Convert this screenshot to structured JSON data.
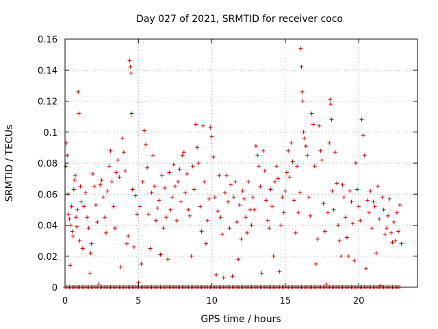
{
  "chart_data": {
    "type": "scatter",
    "title": "Day 027 of 2021, SRMTID for receiver coco",
    "xlabel": "GPS time / hours",
    "ylabel": "SRMTID / TECUs",
    "xlim": [
      0,
      24
    ],
    "ylim": [
      0,
      0.16
    ],
    "xticks": [
      0,
      5,
      10,
      15,
      20
    ],
    "yticks": [
      0,
      0.02,
      0.04,
      0.06,
      0.08,
      0.1,
      0.12,
      0.14,
      0.16
    ],
    "xtick_labels": [
      "0",
      "5",
      "10",
      "15",
      "20"
    ],
    "ytick_labels": [
      "0",
      "0.02",
      "0.04",
      "0.06",
      "0.08",
      "0.1",
      "0.12",
      "0.14",
      "0.16"
    ],
    "grid": true,
    "marker": "+",
    "color": "#cc0000",
    "series": [
      {
        "name": "SRMTID",
        "points": [
          [
            0.05,
            0.078
          ],
          [
            0.1,
            0.093
          ],
          [
            0.15,
            0.085
          ],
          [
            0.2,
            0.06
          ],
          [
            0.25,
            0.047
          ],
          [
            0.3,
            0.044
          ],
          [
            0.35,
            0.014
          ],
          [
            0.4,
            0.04
          ],
          [
            0.45,
            0.052
          ],
          [
            0.5,
            0.036
          ],
          [
            0.55,
            0.033
          ],
          [
            0.6,
            0.063
          ],
          [
            0.65,
            0.069
          ],
          [
            0.7,
            0.072
          ],
          [
            0.75,
            0.045
          ],
          [
            0.8,
            0.039
          ],
          [
            0.85,
            0.05
          ],
          [
            0.9,
            0.126
          ],
          [
            0.95,
            0.112
          ],
          [
            1.0,
            0.03
          ],
          [
            1.05,
            0.065
          ],
          [
            1.1,
            0.055
          ],
          [
            1.2,
            0.025
          ],
          [
            1.3,
            0.052
          ],
          [
            1.4,
            0.061
          ],
          [
            1.5,
            0.045
          ],
          [
            1.6,
            0.038
          ],
          [
            1.7,
            0.009
          ],
          [
            1.75,
            0.022
          ],
          [
            1.8,
            0.028
          ],
          [
            1.9,
            0.073
          ],
          [
            2.0,
            0.065
          ],
          [
            2.1,
            0.053
          ],
          [
            2.2,
            0.042
          ],
          [
            2.3,
            0.002
          ],
          [
            2.4,
            0.066
          ],
          [
            2.5,
            0.069
          ],
          [
            2.6,
            0.058
          ],
          [
            2.7,
            0.045
          ],
          [
            2.8,
            0.035
          ],
          [
            2.9,
            0.062
          ],
          [
            3.0,
            0.078
          ],
          [
            3.1,
            0.088
          ],
          [
            3.2,
            0.068
          ],
          [
            3.3,
            0.052
          ],
          [
            3.4,
            0.038
          ],
          [
            3.5,
            0.074
          ],
          [
            3.6,
            0.082
          ],
          [
            3.7,
            0.071
          ],
          [
            3.8,
            0.013
          ],
          [
            3.9,
            0.096
          ],
          [
            4.0,
            0.087
          ],
          [
            4.1,
            0.075
          ],
          [
            4.2,
            0.028
          ],
          [
            4.3,
            0.033
          ],
          [
            4.4,
            0.146
          ],
          [
            4.45,
            0.142
          ],
          [
            4.5,
            0.138
          ],
          [
            4.55,
            0.112
          ],
          [
            4.6,
            0.063
          ],
          [
            4.7,
            0.026
          ],
          [
            4.8,
            0.059
          ],
          [
            4.9,
            0.047
          ],
          [
            5.0,
            0.003
          ],
          [
            5.1,
            0.052
          ],
          [
            5.2,
            0.015
          ],
          [
            5.3,
            0.068
          ],
          [
            5.4,
            0.101
          ],
          [
            5.5,
            0.092
          ],
          [
            5.6,
            0.077
          ],
          [
            5.7,
            0.047
          ],
          [
            5.8,
            0.025
          ],
          [
            5.9,
            0.061
          ],
          [
            6.0,
            0.085
          ],
          [
            6.1,
            0.065
          ],
          [
            6.2,
            0.043
          ],
          [
            6.3,
            0.051
          ],
          [
            6.4,
            0.056
          ],
          [
            6.5,
            0.021
          ],
          [
            6.6,
            0.072
          ],
          [
            6.7,
            0.038
          ],
          [
            6.8,
            0.064
          ],
          [
            6.9,
            0.045
          ],
          [
            7.0,
            0.018
          ],
          [
            7.1,
            0.074
          ],
          [
            7.2,
            0.05
          ],
          [
            7.3,
            0.058
          ],
          [
            7.4,
            0.079
          ],
          [
            7.5,
            0.065
          ],
          [
            7.6,
            0.043
          ],
          [
            7.7,
            0.068
          ],
          [
            7.8,
            0.076
          ],
          [
            7.9,
            0.055
          ],
          [
            8.0,
            0.085
          ],
          [
            8.1,
            0.087
          ],
          [
            8.2,
            0.061
          ],
          [
            8.3,
            0.073
          ],
          [
            8.4,
            0.05
          ],
          [
            8.5,
            0.046
          ],
          [
            8.6,
            0.02
          ],
          [
            8.7,
            0.078
          ],
          [
            8.8,
            0.063
          ],
          [
            8.9,
            0.105
          ],
          [
            9.0,
            0.09
          ],
          [
            9.1,
            0.08
          ],
          [
            9.2,
            0.052
          ],
          [
            9.3,
            0.036
          ],
          [
            9.4,
            0.104
          ],
          [
            9.5,
            0.068
          ],
          [
            9.6,
            0.028
          ],
          [
            9.7,
            0.043
          ],
          [
            9.8,
            0.057
          ],
          [
            9.9,
            0.103
          ],
          [
            10.0,
            0.097
          ],
          [
            10.1,
            0.084
          ],
          [
            10.2,
            0.058
          ],
          [
            10.3,
            0.008
          ],
          [
            10.4,
            0.049
          ],
          [
            10.5,
            0.072
          ],
          [
            10.6,
            0.045
          ],
          [
            10.7,
            0.034
          ],
          [
            10.8,
            0.006
          ],
          [
            10.9,
            0.061
          ],
          [
            11.0,
            0.072
          ],
          [
            11.1,
            0.055
          ],
          [
            11.2,
            0.038
          ],
          [
            11.3,
            0.066
          ],
          [
            11.4,
            0.007
          ],
          [
            11.5,
            0.058
          ],
          [
            11.6,
            0.068
          ],
          [
            11.7,
            0.042
          ],
          [
            11.8,
            0.018
          ],
          [
            11.9,
            0.053
          ],
          [
            12.0,
            0.031
          ],
          [
            12.1,
            0.062
          ],
          [
            12.2,
            0.057
          ],
          [
            12.3,
            0.045
          ],
          [
            12.4,
            0.035
          ],
          [
            12.5,
            0.068
          ],
          [
            12.6,
            0.05
          ],
          [
            12.7,
            0.04
          ],
          [
            12.8,
            0.058
          ],
          [
            12.9,
            0.05
          ],
          [
            13.0,
            0.091
          ],
          [
            13.1,
            0.085
          ],
          [
            13.2,
            0.078
          ],
          [
            13.3,
            0.065
          ],
          [
            13.4,
            0.009
          ],
          [
            13.5,
            0.088
          ],
          [
            13.6,
            0.075
          ],
          [
            13.7,
            0.056
          ],
          [
            13.8,
            0.043
          ],
          [
            13.9,
            0.038
          ],
          [
            14.0,
            0.063
          ],
          [
            14.1,
            0.052
          ],
          [
            14.2,
            0.02
          ],
          [
            14.3,
            0.068
          ],
          [
            14.4,
            0.078
          ],
          [
            14.5,
            0.07
          ],
          [
            14.6,
            0.01
          ],
          [
            14.7,
            0.04
          ],
          [
            14.8,
            0.058
          ],
          [
            14.9,
            0.048
          ],
          [
            15.0,
            0.062
          ],
          [
            15.1,
            0.074
          ],
          [
            15.2,
            0.088
          ],
          [
            15.3,
            0.071
          ],
          [
            15.4,
            0.093
          ],
          [
            15.5,
            0.081
          ],
          [
            15.6,
            0.056
          ],
          [
            15.7,
            0.035
          ],
          [
            15.8,
            0.078
          ],
          [
            15.9,
            0.048
          ],
          [
            16.0,
            0.061
          ],
          [
            16.05,
            0.154
          ],
          [
            16.1,
            0.142
          ],
          [
            16.15,
            0.126
          ],
          [
            16.2,
            0.12
          ],
          [
            16.25,
            0.1
          ],
          [
            16.3,
            0.096
          ],
          [
            16.4,
            0.091
          ],
          [
            16.5,
            0.085
          ],
          [
            16.6,
            0.058
          ],
          [
            16.7,
            0.046
          ],
          [
            16.8,
            0.112
          ],
          [
            16.9,
            0.105
          ],
          [
            17.0,
            0.078
          ],
          [
            17.1,
            0.015
          ],
          [
            17.2,
            0.031
          ],
          [
            17.3,
            0.104
          ],
          [
            17.4,
            0.088
          ],
          [
            17.5,
            0.082
          ],
          [
            17.6,
            0.054
          ],
          [
            17.7,
            0.036
          ],
          [
            17.8,
            0.002
          ],
          [
            17.9,
            0.048
          ],
          [
            18.0,
            0.093
          ],
          [
            18.05,
            0.121
          ],
          [
            18.1,
            0.118
          ],
          [
            18.15,
            0.108
          ],
          [
            18.2,
            0.062
          ],
          [
            18.3,
            0.05
          ],
          [
            18.4,
            0.087
          ],
          [
            18.5,
            0.067
          ],
          [
            18.6,
            0.04
          ],
          [
            18.7,
            0.03
          ],
          [
            18.8,
            0.02
          ],
          [
            18.9,
            0.066
          ],
          [
            19.0,
            0.058
          ],
          [
            19.1,
            0.045
          ],
          [
            19.2,
            0.032
          ],
          [
            19.3,
            0.02
          ],
          [
            19.4,
            0.062
          ],
          [
            19.5,
            0.055
          ],
          [
            19.6,
            0.041
          ],
          [
            19.7,
            0.017
          ],
          [
            19.8,
            0.08
          ],
          [
            19.9,
            0.063
          ],
          [
            20.0,
            0.052
          ],
          [
            20.1,
            0.043
          ],
          [
            20.2,
            0.108
          ],
          [
            20.3,
            0.098
          ],
          [
            20.4,
            0.085
          ],
          [
            20.5,
            0.012
          ],
          [
            20.6,
            0.056
          ],
          [
            20.7,
            0.048
          ],
          [
            20.8,
            0.062
          ],
          [
            20.9,
            0.038
          ],
          [
            21.0,
            0.055
          ],
          [
            21.1,
            0.052
          ],
          [
            21.2,
            0.022
          ],
          [
            21.3,
            0.065
          ],
          [
            21.4,
            0.044
          ],
          [
            21.5,
            0.001
          ],
          [
            21.6,
            0.058
          ],
          [
            21.7,
            0.05
          ],
          [
            21.8,
            0.034
          ],
          [
            21.9,
            0.038
          ],
          [
            22.0,
            0.046
          ],
          [
            22.1,
            0.057
          ],
          [
            22.2,
            0.035
          ],
          [
            22.3,
            0.029
          ],
          [
            22.4,
            0.042
          ],
          [
            22.5,
            0.03
          ],
          [
            22.6,
            0.048
          ],
          [
            22.7,
            0.036
          ],
          [
            22.8,
            0.053
          ],
          [
            22.9,
            0.028
          ]
        ]
      }
    ]
  }
}
